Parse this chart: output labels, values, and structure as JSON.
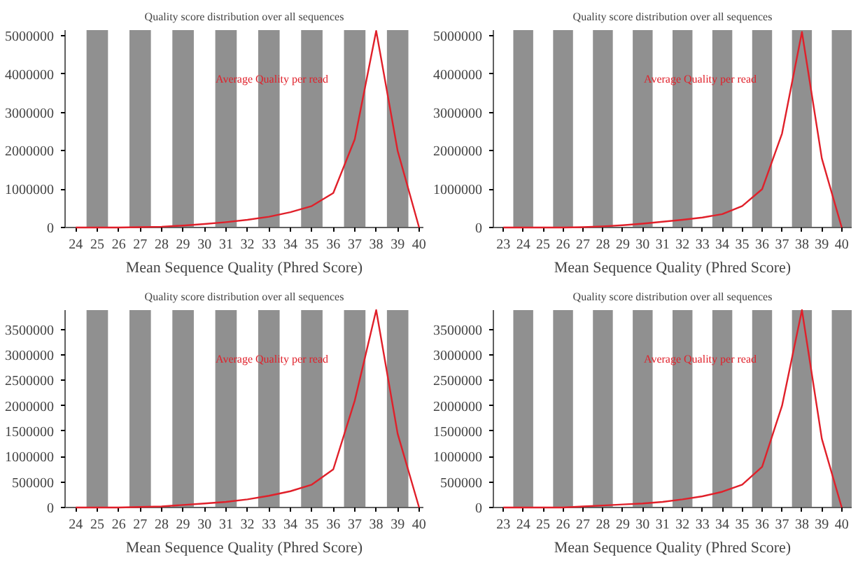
{
  "chart_data": [
    {
      "type": "line",
      "title": "Quality score distribution over all sequences",
      "xlabel": "Mean Sequence Quality (Phred Score)",
      "x": [
        24,
        25,
        26,
        27,
        28,
        29,
        30,
        31,
        32,
        33,
        34,
        35,
        36,
        37,
        38,
        39,
        40
      ],
      "series": [
        {
          "name": "Average Quality per read",
          "color": "#e0202a",
          "values": [
            0,
            0,
            0,
            10000,
            20000,
            50000,
            90000,
            140000,
            200000,
            280000,
            400000,
            560000,
            900000,
            2300000,
            5130000,
            2000000,
            0
          ]
        }
      ],
      "xlim": [
        23.5,
        40.2
      ],
      "xticks": [
        24,
        25,
        26,
        27,
        28,
        29,
        30,
        31,
        32,
        33,
        34,
        35,
        36,
        37,
        38,
        39,
        40
      ],
      "ylim": [
        0,
        5150000
      ],
      "yticks": [
        0,
        1000000,
        2000000,
        3000000,
        4000000,
        5000000
      ],
      "bands": [
        {
          "axis": "x",
          "from": 24.5,
          "to": 25.5,
          "color": "#909090"
        },
        {
          "axis": "x",
          "from": 26.5,
          "to": 27.5,
          "color": "#909090"
        },
        {
          "axis": "x",
          "from": 28.5,
          "to": 29.5,
          "color": "#909090"
        },
        {
          "axis": "x",
          "from": 30.5,
          "to": 31.5,
          "color": "#909090"
        },
        {
          "axis": "x",
          "from": 32.5,
          "to": 33.5,
          "color": "#909090"
        },
        {
          "axis": "x",
          "from": 34.5,
          "to": 35.5,
          "color": "#909090"
        },
        {
          "axis": "x",
          "from": 36.5,
          "to": 37.5,
          "color": "#909090"
        },
        {
          "axis": "x",
          "from": 38.5,
          "to": 39.5,
          "color": "#909090"
        }
      ],
      "grid": false,
      "legend": false
    },
    {
      "type": "line",
      "title": "Quality score distribution over all sequences",
      "xlabel": "Mean Sequence Quality (Phred Score)",
      "x": [
        23,
        24,
        25,
        26,
        27,
        28,
        29,
        30,
        31,
        32,
        33,
        34,
        35,
        36,
        37,
        38,
        39,
        40
      ],
      "series": [
        {
          "name": "Average Quality per read",
          "color": "#e0202a",
          "values": [
            0,
            0,
            0,
            0,
            10000,
            30000,
            60000,
            100000,
            150000,
            200000,
            260000,
            350000,
            560000,
            1000000,
            2450000,
            5100000,
            1800000,
            0
          ]
        }
      ],
      "xlim": [
        22.5,
        40.5
      ],
      "xticks": [
        23,
        24,
        25,
        26,
        27,
        28,
        29,
        30,
        31,
        32,
        33,
        34,
        35,
        36,
        37,
        38,
        39,
        40
      ],
      "ylim": [
        0,
        5150000
      ],
      "yticks": [
        0,
        1000000,
        2000000,
        3000000,
        4000000,
        5000000
      ],
      "bands": [
        {
          "axis": "x",
          "from": 23.5,
          "to": 24.5,
          "color": "#909090"
        },
        {
          "axis": "x",
          "from": 25.5,
          "to": 26.5,
          "color": "#909090"
        },
        {
          "axis": "x",
          "from": 27.5,
          "to": 28.5,
          "color": "#909090"
        },
        {
          "axis": "x",
          "from": 29.5,
          "to": 30.5,
          "color": "#909090"
        },
        {
          "axis": "x",
          "from": 31.5,
          "to": 32.5,
          "color": "#909090"
        },
        {
          "axis": "x",
          "from": 33.5,
          "to": 34.5,
          "color": "#909090"
        },
        {
          "axis": "x",
          "from": 35.5,
          "to": 36.5,
          "color": "#909090"
        },
        {
          "axis": "x",
          "from": 37.5,
          "to": 38.5,
          "color": "#909090"
        },
        {
          "axis": "x",
          "from": 39.5,
          "to": 40.5,
          "color": "#909090"
        }
      ],
      "grid": false,
      "legend": false
    },
    {
      "type": "line",
      "title": "Quality score distribution over all sequences",
      "xlabel": "Mean Sequence Quality (Phred Score)",
      "x": [
        24,
        25,
        26,
        27,
        28,
        29,
        30,
        31,
        32,
        33,
        34,
        35,
        36,
        37,
        38,
        39,
        40
      ],
      "series": [
        {
          "name": "Average Quality per read",
          "color": "#e0202a",
          "values": [
            0,
            0,
            0,
            10000,
            20000,
            50000,
            80000,
            110000,
            160000,
            230000,
            320000,
            450000,
            750000,
            2100000,
            3880000,
            1450000,
            0
          ]
        }
      ],
      "xlim": [
        23.5,
        40.2
      ],
      "xticks": [
        24,
        25,
        26,
        27,
        28,
        29,
        30,
        31,
        32,
        33,
        34,
        35,
        36,
        37,
        38,
        39,
        40
      ],
      "ylim": [
        0,
        3880000
      ],
      "yticks": [
        0,
        500000,
        1000000,
        1500000,
        2000000,
        2500000,
        3000000,
        3500000
      ],
      "bands": [
        {
          "axis": "x",
          "from": 24.5,
          "to": 25.5,
          "color": "#909090"
        },
        {
          "axis": "x",
          "from": 26.5,
          "to": 27.5,
          "color": "#909090"
        },
        {
          "axis": "x",
          "from": 28.5,
          "to": 29.5,
          "color": "#909090"
        },
        {
          "axis": "x",
          "from": 30.5,
          "to": 31.5,
          "color": "#909090"
        },
        {
          "axis": "x",
          "from": 32.5,
          "to": 33.5,
          "color": "#909090"
        },
        {
          "axis": "x",
          "from": 34.5,
          "to": 35.5,
          "color": "#909090"
        },
        {
          "axis": "x",
          "from": 36.5,
          "to": 37.5,
          "color": "#909090"
        },
        {
          "axis": "x",
          "from": 38.5,
          "to": 39.5,
          "color": "#909090"
        }
      ],
      "grid": false,
      "legend": false
    },
    {
      "type": "line",
      "title": "Quality score distribution over all sequences",
      "xlabel": "Mean Sequence Quality (Phred Score)",
      "x": [
        23,
        24,
        25,
        26,
        27,
        28,
        29,
        30,
        31,
        32,
        33,
        34,
        35,
        36,
        37,
        38,
        39,
        40
      ],
      "series": [
        {
          "name": "Average Quality per read",
          "color": "#e0202a",
          "values": [
            0,
            0,
            0,
            0,
            20000,
            40000,
            60000,
            80000,
            110000,
            160000,
            220000,
            310000,
            450000,
            800000,
            2000000,
            3880000,
            1350000,
            0
          ]
        }
      ],
      "xlim": [
        22.5,
        40.5
      ],
      "xticks": [
        23,
        24,
        25,
        26,
        27,
        28,
        29,
        30,
        31,
        32,
        33,
        34,
        35,
        36,
        37,
        38,
        39,
        40
      ],
      "ylim": [
        0,
        3880000
      ],
      "yticks": [
        0,
        500000,
        1000000,
        1500000,
        2000000,
        2500000,
        3000000,
        3500000
      ],
      "bands": [
        {
          "axis": "x",
          "from": 23.5,
          "to": 24.5,
          "color": "#909090"
        },
        {
          "axis": "x",
          "from": 25.5,
          "to": 26.5,
          "color": "#909090"
        },
        {
          "axis": "x",
          "from": 27.5,
          "to": 28.5,
          "color": "#909090"
        },
        {
          "axis": "x",
          "from": 29.5,
          "to": 30.5,
          "color": "#909090"
        },
        {
          "axis": "x",
          "from": 31.5,
          "to": 32.5,
          "color": "#909090"
        },
        {
          "axis": "x",
          "from": 33.5,
          "to": 34.5,
          "color": "#909090"
        },
        {
          "axis": "x",
          "from": 35.5,
          "to": 36.5,
          "color": "#909090"
        },
        {
          "axis": "x",
          "from": 37.5,
          "to": 38.5,
          "color": "#909090"
        },
        {
          "axis": "x",
          "from": 39.5,
          "to": 40.5,
          "color": "#909090"
        }
      ],
      "grid": false,
      "legend": false
    }
  ]
}
